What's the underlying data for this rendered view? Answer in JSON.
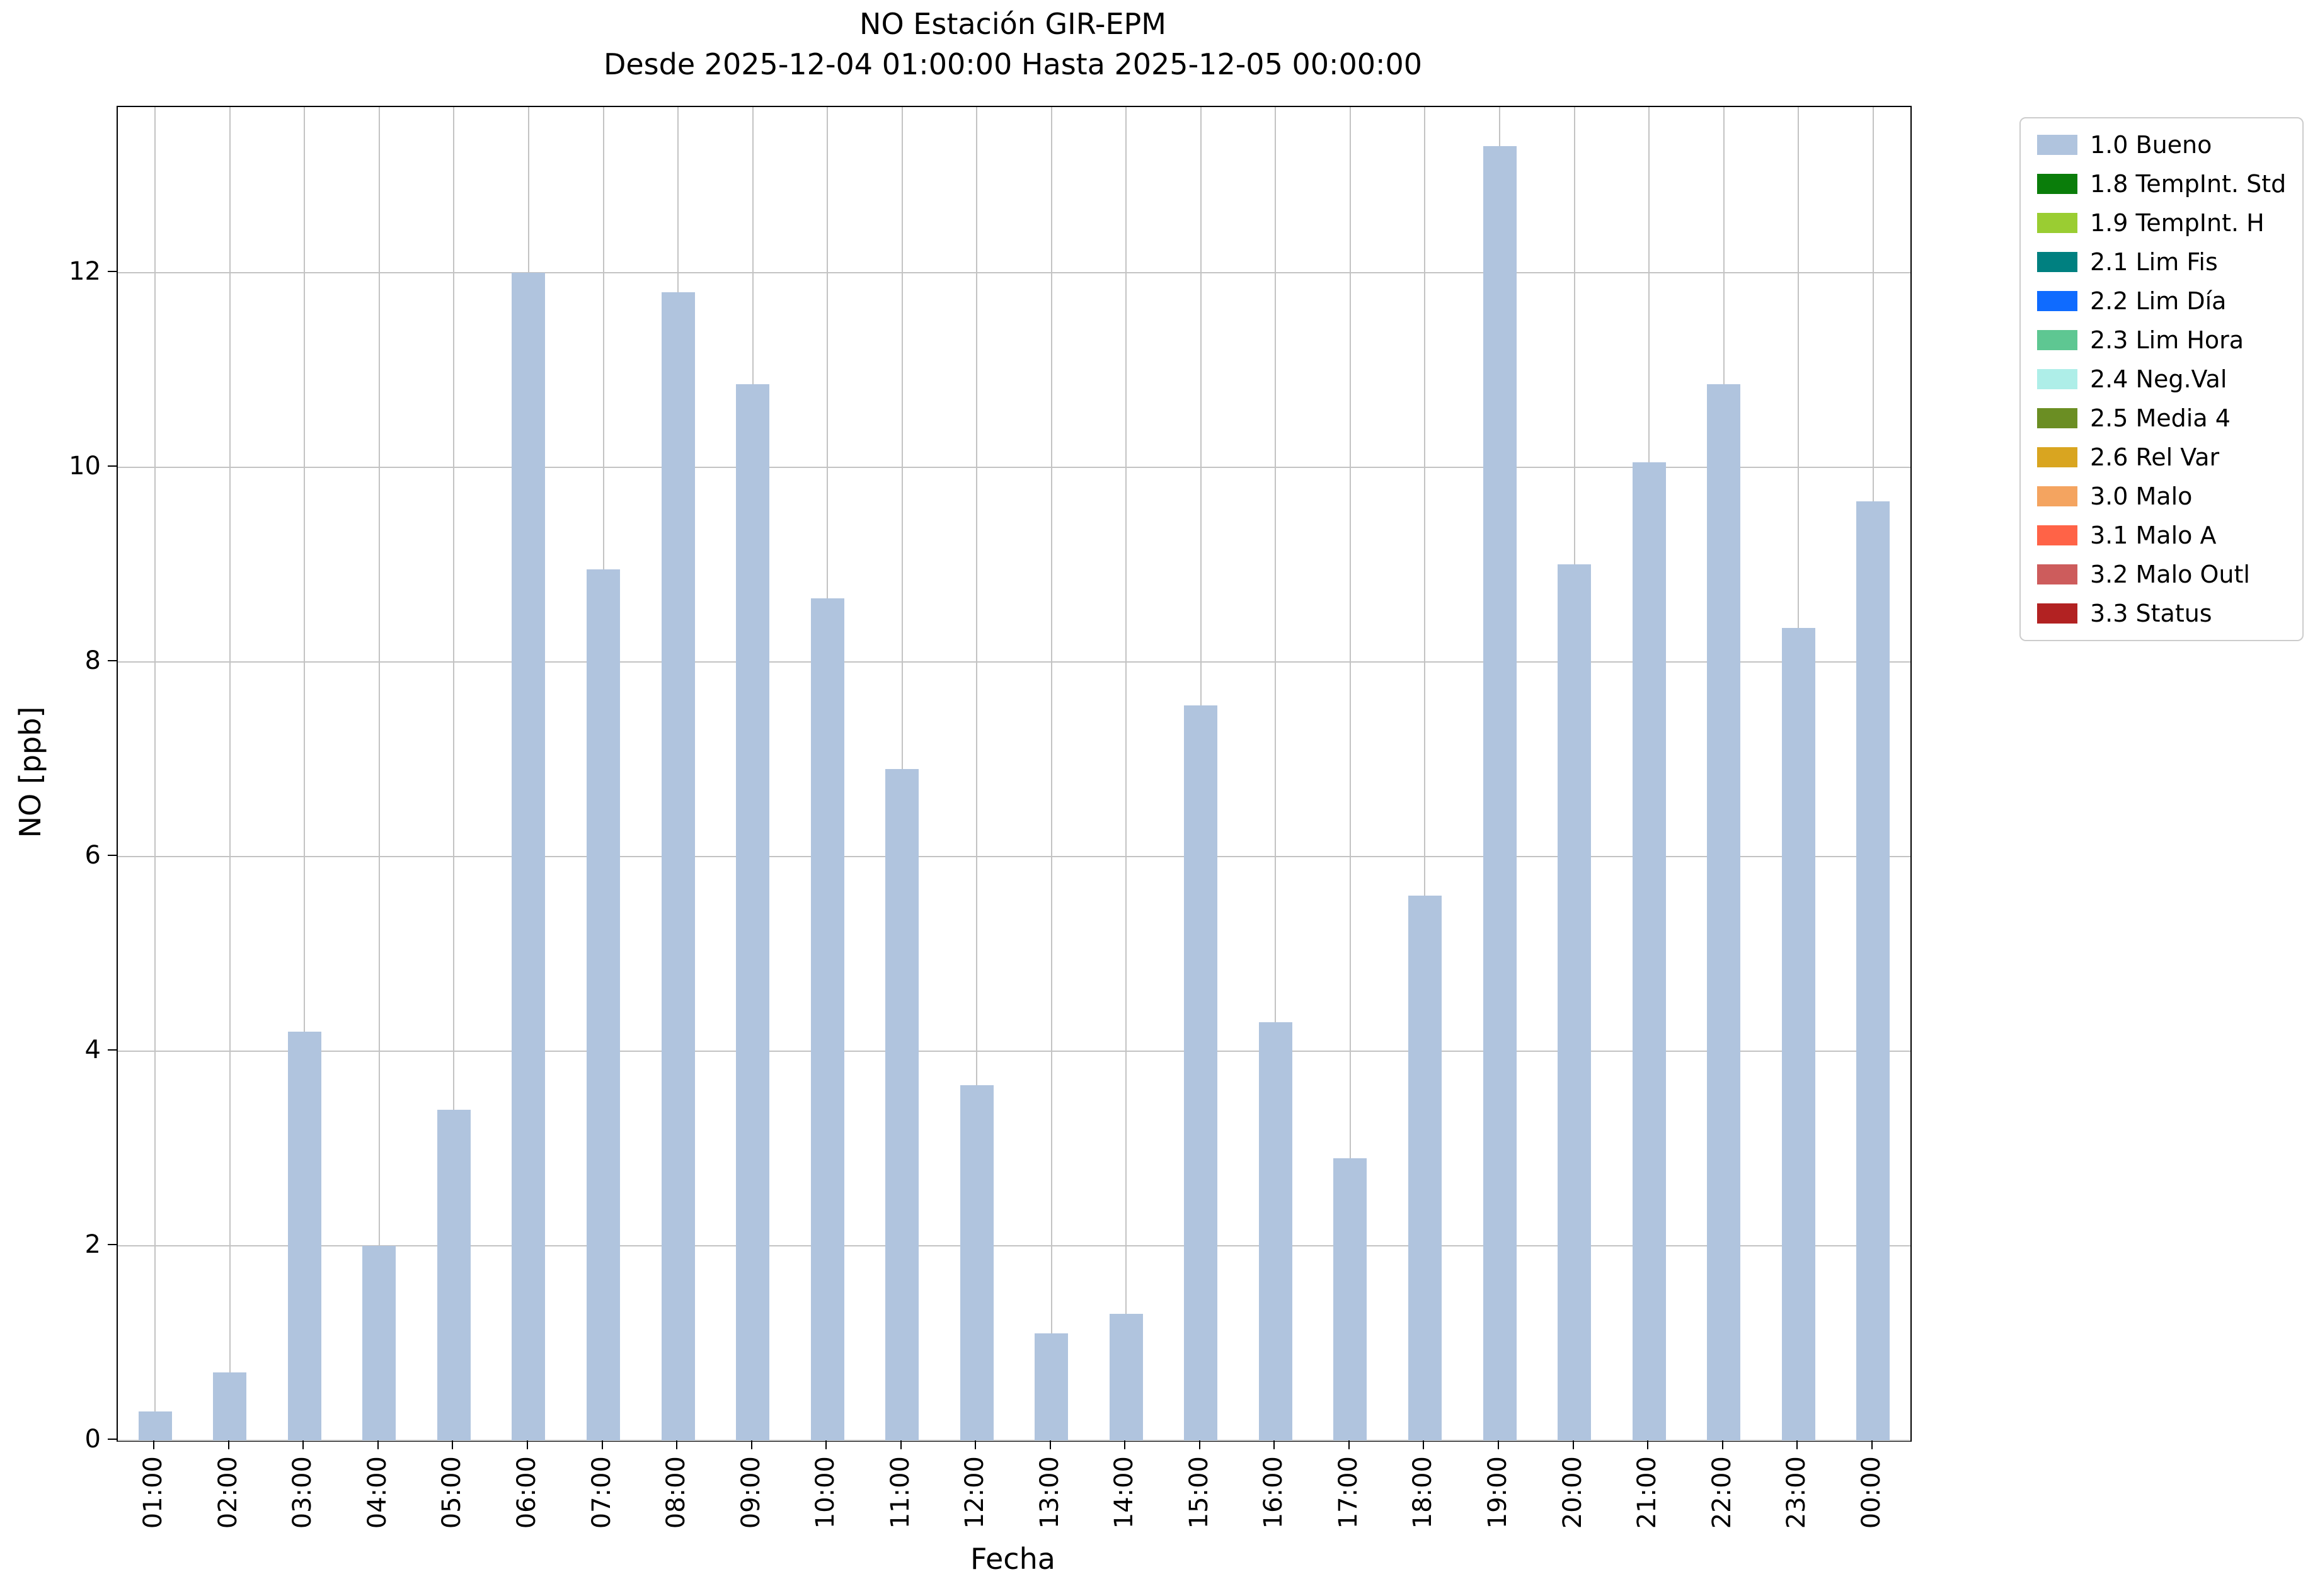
{
  "chart_data": {
    "type": "bar",
    "title": "NO Estación GIR-EPM",
    "subtitle": "Desde 2025-12-04 01:00:00 Hasta 2025-12-05 00:00:00",
    "xlabel": "Fecha",
    "ylabel": "NO [ppb]",
    "ylim": [
      0,
      13.7
    ],
    "yticks": [
      0,
      2,
      4,
      6,
      8,
      10,
      12
    ],
    "grid": true,
    "legend_position": "outside-upper-right",
    "bar_color": "#b0c4de",
    "categories": [
      "01:00",
      "02:00",
      "03:00",
      "04:00",
      "05:00",
      "06:00",
      "07:00",
      "08:00",
      "09:00",
      "10:00",
      "11:00",
      "12:00",
      "13:00",
      "14:00",
      "15:00",
      "16:00",
      "17:00",
      "18:00",
      "19:00",
      "20:00",
      "21:00",
      "22:00",
      "23:00",
      "00:00"
    ],
    "values": [
      0.3,
      0.7,
      4.2,
      2.0,
      3.4,
      12.0,
      8.95,
      11.8,
      10.85,
      8.65,
      6.9,
      3.65,
      1.1,
      1.3,
      7.55,
      4.3,
      2.9,
      5.6,
      13.3,
      9.0,
      10.05,
      10.85,
      8.35,
      9.65
    ],
    "legend": [
      {
        "label": "1.0 Bueno",
        "color": "#b0c4de"
      },
      {
        "label": "1.8 TempInt. Std",
        "color": "#0a7d0a"
      },
      {
        "label": "1.9 TempInt. H",
        "color": "#9acd32"
      },
      {
        "label": "2.1 Lim Fis",
        "color": "#008080"
      },
      {
        "label": "2.2 Lim Día",
        "color": "#0f6bff"
      },
      {
        "label": "2.3 Lim Hora",
        "color": "#5ec792"
      },
      {
        "label": "2.4 Neg.Val",
        "color": "#aeeee8"
      },
      {
        "label": "2.5 Media 4",
        "color": "#6b8e23"
      },
      {
        "label": "2.6 Rel Var",
        "color": "#d9a520"
      },
      {
        "label": "3.0 Malo",
        "color": "#f4a460"
      },
      {
        "label": "3.1 Malo A",
        "color": "#ff6347"
      },
      {
        "label": "3.2 Malo Outl",
        "color": "#cd5c5c"
      },
      {
        "label": "3.3 Status",
        "color": "#b22222"
      }
    ]
  }
}
